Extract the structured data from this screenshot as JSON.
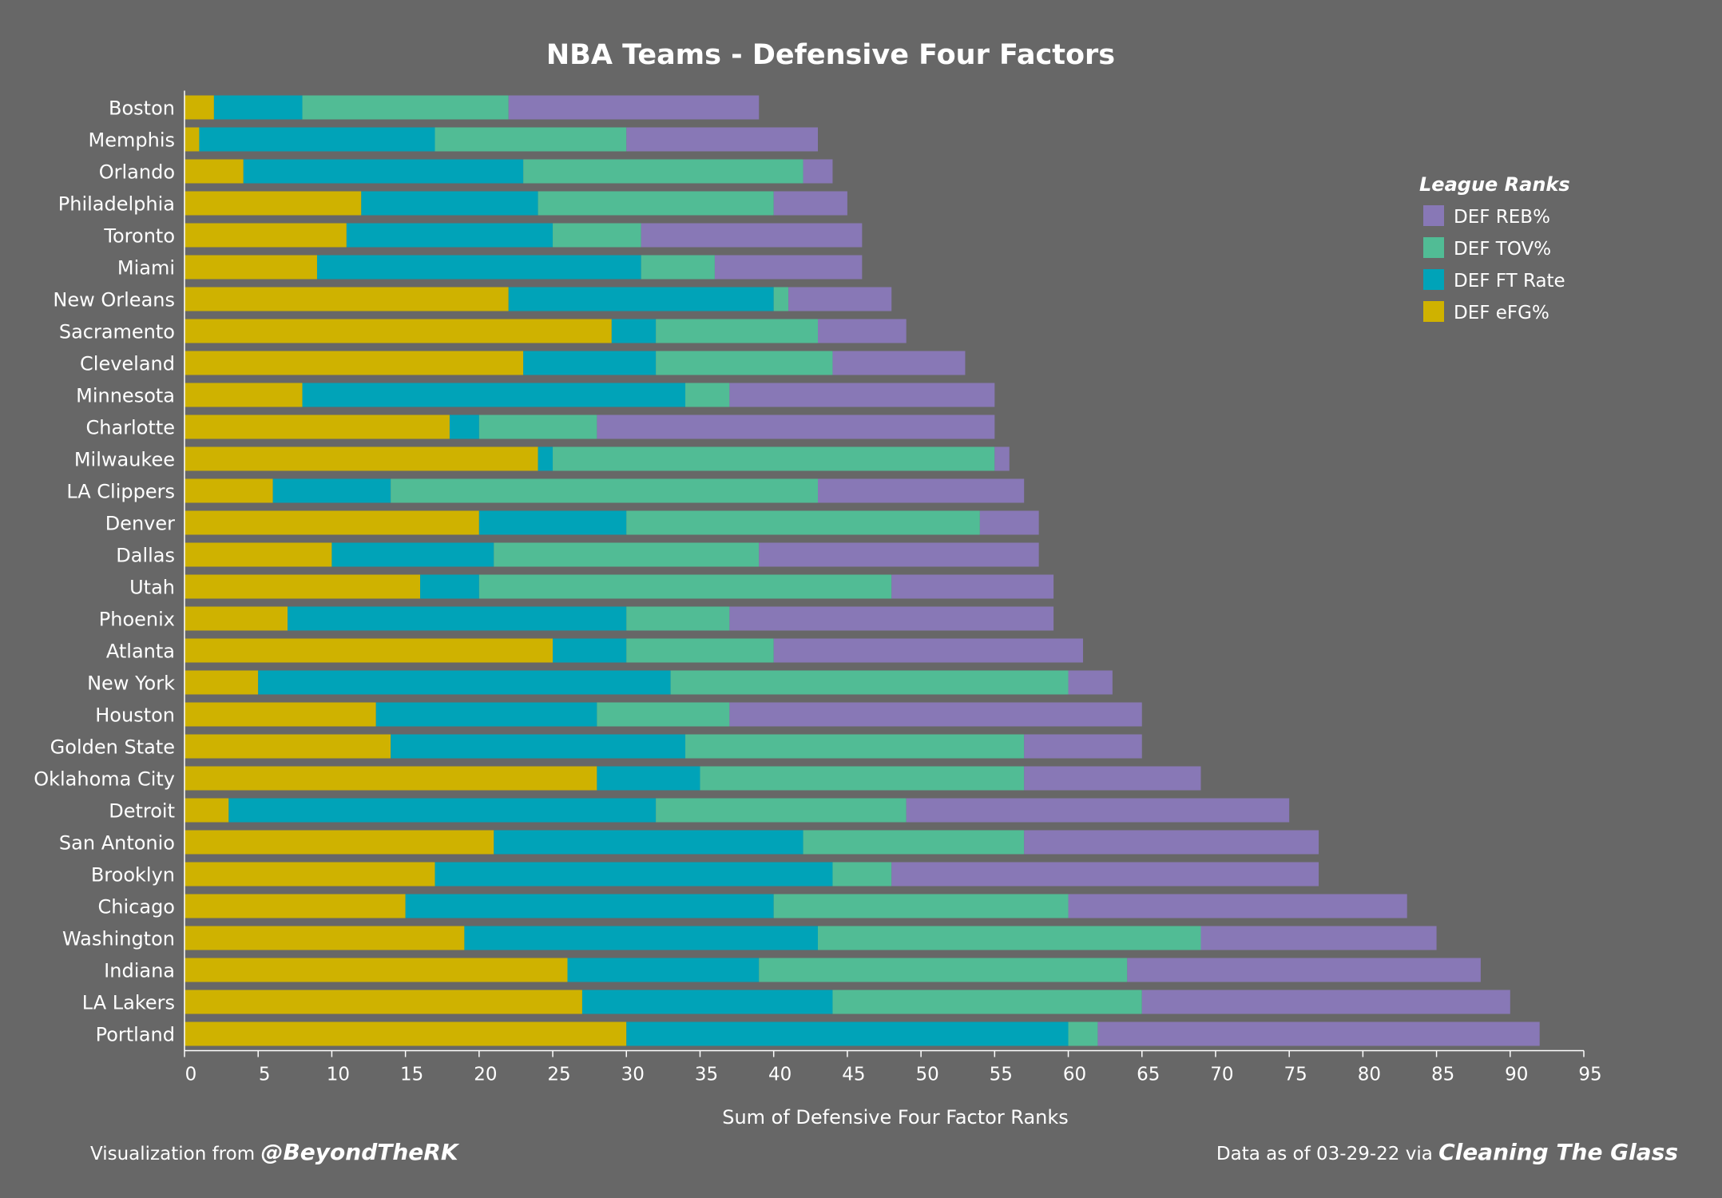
{
  "chart_data": {
    "type": "bar",
    "orientation": "horizontal",
    "stacked": true,
    "title": "NBA Teams - Defensive Four Factors",
    "xlabel": "Sum of Defensive Four Factor Ranks",
    "ylabel": "",
    "xlim": [
      0,
      95
    ],
    "x_ticks": [
      0,
      5,
      10,
      15,
      20,
      25,
      30,
      35,
      40,
      45,
      50,
      55,
      60,
      65,
      70,
      75,
      80,
      85,
      90,
      95
    ],
    "grid": false,
    "legend_position": "top-right",
    "legend_title": "League Ranks",
    "categories": [
      "Boston",
      "Memphis",
      "Orlando",
      "Philadelphia",
      "Toronto",
      "Miami",
      "New Orleans",
      "Sacramento",
      "Cleveland",
      "Minnesota",
      "Charlotte",
      "Milwaukee",
      "LA Clippers",
      "Denver",
      "Dallas",
      "Utah",
      "Phoenix",
      "Atlanta",
      "New York",
      "Houston",
      "Golden State",
      "Oklahoma City",
      "Detroit",
      "San Antonio",
      "Brooklyn",
      "Chicago",
      "Washington",
      "Indiana",
      "LA Lakers",
      "Portland"
    ],
    "series": [
      {
        "name": "DEF eFG%",
        "color": "#cfb200",
        "values": [
          2,
          1,
          4,
          12,
          11,
          9,
          22,
          29,
          23,
          8,
          18,
          24,
          6,
          20,
          10,
          16,
          7,
          25,
          5,
          13,
          14,
          28,
          3,
          21,
          17,
          15,
          19,
          26,
          27,
          30
        ]
      },
      {
        "name": "DEF FT Rate",
        "color": "#00a3b8",
        "values": [
          6,
          16,
          19,
          12,
          14,
          22,
          18,
          3,
          9,
          26,
          2,
          1,
          8,
          10,
          11,
          4,
          23,
          5,
          28,
          15,
          20,
          7,
          29,
          21,
          27,
          25,
          24,
          13,
          17,
          30
        ]
      },
      {
        "name": "DEF TOV%",
        "color": "#51bc95",
        "values": [
          14,
          13,
          19,
          16,
          6,
          5,
          1,
          11,
          12,
          3,
          8,
          30,
          29,
          24,
          18,
          28,
          7,
          10,
          27,
          9,
          23,
          22,
          17,
          15,
          4,
          20,
          26,
          25,
          21,
          2
        ]
      },
      {
        "name": "DEF REB%",
        "color": "#8878b6",
        "values": [
          17,
          13,
          2,
          5,
          15,
          10,
          7,
          6,
          9,
          18,
          27,
          1,
          14,
          4,
          19,
          11,
          22,
          21,
          3,
          28,
          8,
          12,
          26,
          20,
          29,
          23,
          16,
          24,
          25,
          30
        ]
      }
    ],
    "legend_order": [
      "DEF REB%",
      "DEF TOV%",
      "DEF FT Rate",
      "DEF eFG%"
    ]
  },
  "footer": {
    "left_prefix": "Visualization from",
    "left_handle": "@BeyondTheRK",
    "right_prefix": "Data as of 03-29-22 via",
    "right_source": "Cleaning The Glass"
  }
}
